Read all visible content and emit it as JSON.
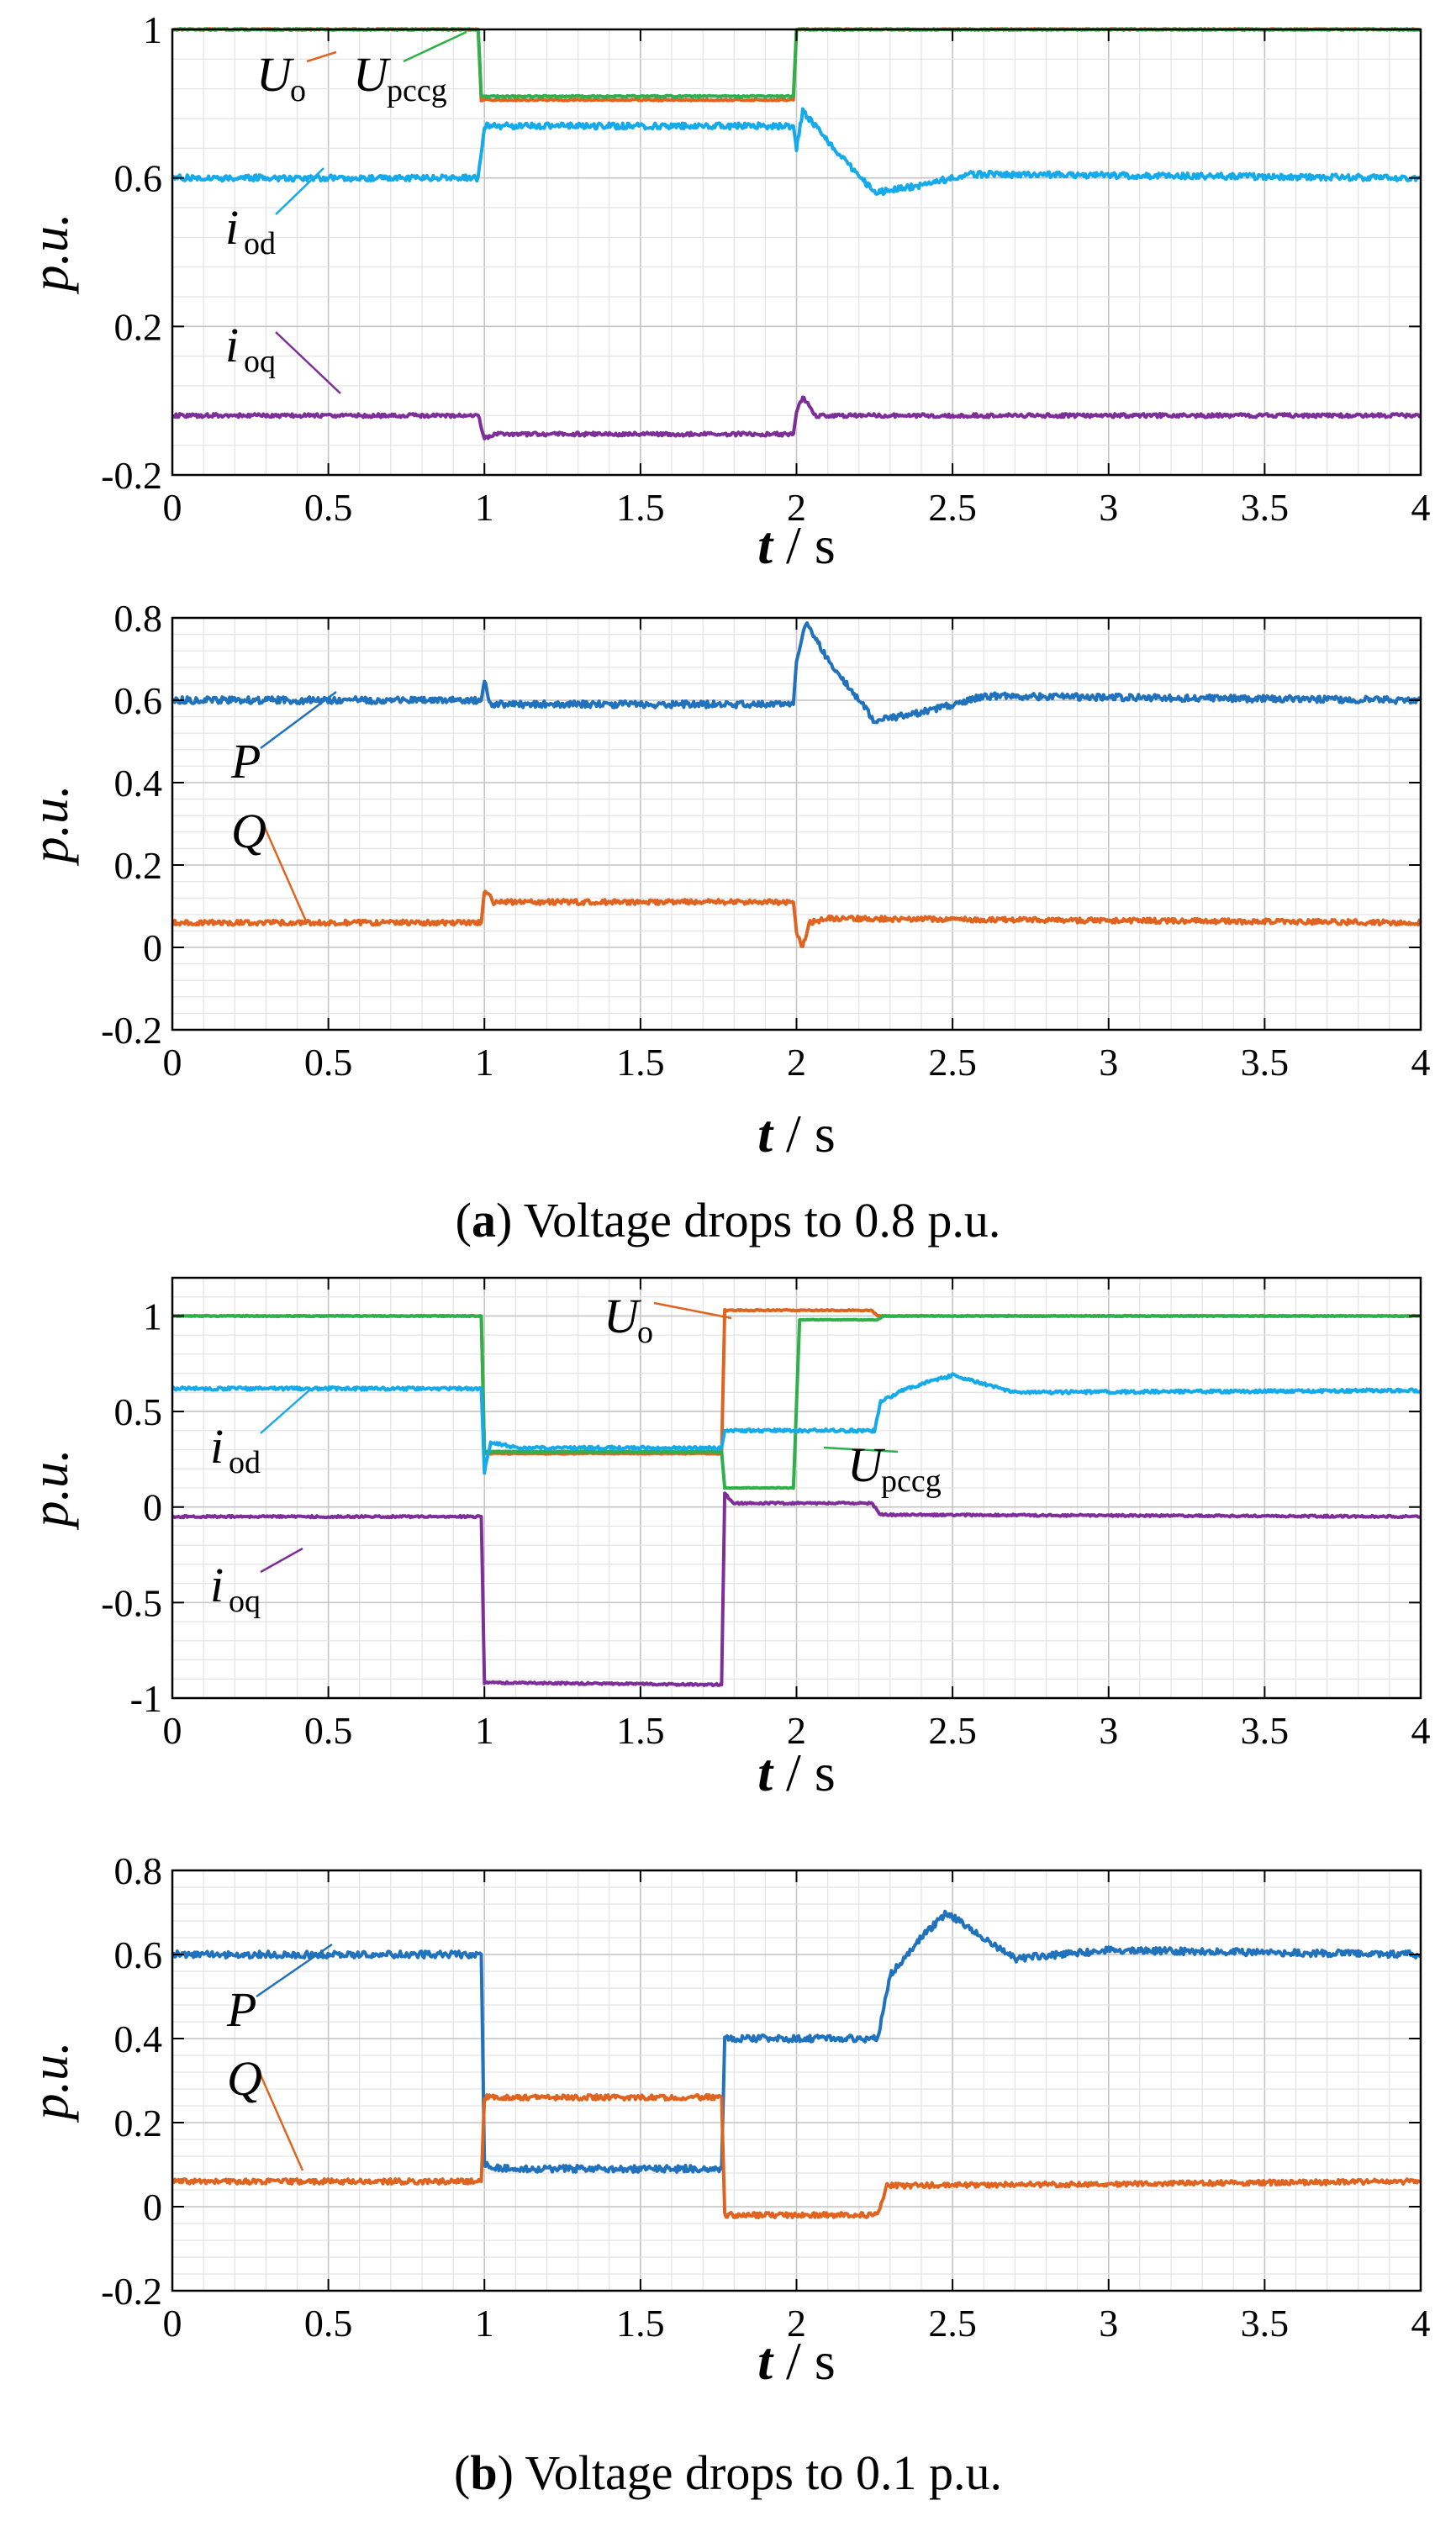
{
  "colors": {
    "u_o": "#e0641f",
    "u_pccg": "#2fb04a",
    "i_od": "#15aaea",
    "i_oq": "#7e2e99",
    "p": "#1f72bb",
    "q": "#e0641f",
    "grid_minor": "#e3e3e3",
    "grid_major": "#c4c4c4"
  },
  "chart_data": [
    {
      "id": "a-current",
      "type": "line",
      "xlabel_t": "t",
      "xlabel_unit": "s",
      "xlabel_sep": " / ",
      "ylabel": "p.u.",
      "xlim": [
        0,
        4
      ],
      "ylim": [
        -0.2,
        1
      ],
      "xticks": [
        "0",
        "0.5",
        "1",
        "1.5",
        "2",
        "2.5",
        "3",
        "3.5",
        "4"
      ],
      "yticks": [
        "-0.2",
        "0.2",
        "0.6",
        "1"
      ],
      "ytick_values": [
        -0.2,
        0.2,
        0.6,
        1
      ],
      "series": [
        {
          "key": "u_o",
          "label_main": "U",
          "label_sub": "o",
          "color": "#e0641f",
          "noise": 0.002,
          "points": [
            [
              0,
              1
            ],
            [
              0.98,
              1
            ],
            [
              0.99,
              0.81
            ],
            [
              1.99,
              0.81
            ],
            [
              2.0,
              1.0
            ],
            [
              4,
              1.0
            ]
          ]
        },
        {
          "key": "u_pccg",
          "label_main": "U",
          "label_sub": "pccg",
          "color": "#2fb04a",
          "noise": 0.002,
          "points": [
            [
              0,
              1
            ],
            [
              0.98,
              1
            ],
            [
              0.99,
              0.82
            ],
            [
              1.99,
              0.82
            ],
            [
              2.0,
              1.0
            ],
            [
              4,
              1.0
            ]
          ]
        },
        {
          "key": "i_od",
          "label_main": "i",
          "label_sub": "od",
          "color": "#15aaea",
          "noise": 0.008,
          "points": [
            [
              0,
              0.6
            ],
            [
              0.98,
              0.6
            ],
            [
              1.0,
              0.74
            ],
            [
              1.99,
              0.74
            ],
            [
              2.0,
              0.68
            ],
            [
              2.02,
              0.78
            ],
            [
              2.1,
              0.7
            ],
            [
              2.25,
              0.56
            ],
            [
              2.4,
              0.58
            ],
            [
              2.55,
              0.61
            ],
            [
              4,
              0.6
            ]
          ]
        },
        {
          "key": "i_oq",
          "label_main": "i",
          "label_sub": "oq",
          "color": "#7e2e99",
          "noise": 0.005,
          "points": [
            [
              0,
              -0.04
            ],
            [
              0.98,
              -0.04
            ],
            [
              1.0,
              -0.1
            ],
            [
              1.04,
              -0.09
            ],
            [
              1.99,
              -0.09
            ],
            [
              2.0,
              -0.03
            ],
            [
              2.02,
              0.01
            ],
            [
              2.06,
              -0.04
            ],
            [
              4,
              -0.04
            ]
          ]
        }
      ]
    },
    {
      "id": "a-power",
      "type": "line",
      "xlabel_t": "t",
      "xlabel_unit": "s",
      "xlabel_sep": " / ",
      "ylabel": "p.u.",
      "xlim": [
        0,
        4
      ],
      "ylim": [
        -0.2,
        0.8
      ],
      "xticks": [
        "0",
        "0.5",
        "1",
        "1.5",
        "2",
        "2.5",
        "3",
        "3.5",
        "4"
      ],
      "yticks": [
        "-0.2",
        "0",
        "0.2",
        "0.4",
        "0.6",
        "0.8"
      ],
      "ytick_values": [
        -0.2,
        0,
        0.2,
        0.4,
        0.6,
        0.8
      ],
      "series": [
        {
          "key": "p",
          "label_main": "P",
          "label_sub": "",
          "color": "#1f72bb",
          "noise": 0.008,
          "points": [
            [
              0,
              0.6
            ],
            [
              0.99,
              0.6
            ],
            [
              1.0,
              0.65
            ],
            [
              1.02,
              0.59
            ],
            [
              1.99,
              0.59
            ],
            [
              2.0,
              0.7
            ],
            [
              2.03,
              0.79
            ],
            [
              2.1,
              0.7
            ],
            [
              2.25,
              0.55
            ],
            [
              2.4,
              0.57
            ],
            [
              2.6,
              0.61
            ],
            [
              4,
              0.6
            ]
          ]
        },
        {
          "key": "q",
          "label_main": "Q",
          "label_sub": "",
          "color": "#e0641f",
          "noise": 0.006,
          "points": [
            [
              0,
              0.06
            ],
            [
              0.99,
              0.06
            ],
            [
              1.0,
              0.14
            ],
            [
              1.03,
              0.11
            ],
            [
              1.99,
              0.11
            ],
            [
              2.0,
              0.04
            ],
            [
              2.02,
              0.0
            ],
            [
              2.04,
              0.06
            ],
            [
              2.1,
              0.07
            ],
            [
              4,
              0.06
            ]
          ]
        }
      ]
    },
    {
      "id": "b-current",
      "type": "line",
      "xlabel_t": "t",
      "xlabel_unit": "s",
      "xlabel_sep": " / ",
      "ylabel": "p.u.",
      "xlim": [
        0,
        4
      ],
      "ylim": [
        -1,
        1.2
      ],
      "xticks": [
        "0",
        "0.5",
        "1",
        "1.5",
        "2",
        "2.5",
        "3",
        "3.5",
        "4"
      ],
      "yticks": [
        "-1",
        "-0.5",
        "0",
        "0.5",
        "1"
      ],
      "ytick_values": [
        -1,
        -0.5,
        0,
        0.5,
        1
      ],
      "series": [
        {
          "key": "u_o",
          "label_main": "U",
          "label_sub": "o",
          "color": "#e0641f",
          "noise": 0.003,
          "points": [
            [
              0,
              1
            ],
            [
              0.99,
              1
            ],
            [
              1.0,
              0.28
            ],
            [
              1.76,
              0.28
            ],
            [
              1.77,
              1.03
            ],
            [
              2.24,
              1.03
            ],
            [
              2.26,
              1.0
            ],
            [
              4,
              1.0
            ]
          ]
        },
        {
          "key": "u_pccg",
          "label_main": "U",
          "label_sub": "pccg",
          "color": "#2fb04a",
          "noise": 0.002,
          "points": [
            [
              0,
              1
            ],
            [
              0.99,
              1
            ],
            [
              1.0,
              0.29
            ],
            [
              1.76,
              0.29
            ],
            [
              1.77,
              0.1
            ],
            [
              1.99,
              0.1
            ],
            [
              2.01,
              0.98
            ],
            [
              2.26,
              0.98
            ],
            [
              2.28,
              1.0
            ],
            [
              4,
              1.0
            ]
          ]
        },
        {
          "key": "i_od",
          "label_main": "i",
          "label_sub": "od",
          "color": "#15aaea",
          "noise": 0.008,
          "points": [
            [
              0,
              0.62
            ],
            [
              0.99,
              0.62
            ],
            [
              1.0,
              0.18
            ],
            [
              1.02,
              0.34
            ],
            [
              1.1,
              0.31
            ],
            [
              1.76,
              0.31
            ],
            [
              1.77,
              0.4
            ],
            [
              2.25,
              0.4
            ],
            [
              2.27,
              0.55
            ],
            [
              2.35,
              0.62
            ],
            [
              2.5,
              0.69
            ],
            [
              2.7,
              0.6
            ],
            [
              4,
              0.61
            ]
          ]
        },
        {
          "key": "i_oq",
          "label_main": "i",
          "label_sub": "oq",
          "color": "#7e2e99",
          "noise": 0.005,
          "points": [
            [
              0,
              -0.05
            ],
            [
              0.99,
              -0.05
            ],
            [
              1.0,
              -0.92
            ],
            [
              1.1,
              -0.92
            ],
            [
              1.76,
              -0.93
            ],
            [
              1.77,
              0.07
            ],
            [
              1.8,
              0.02
            ],
            [
              2.24,
              0.02
            ],
            [
              2.27,
              -0.04
            ],
            [
              4,
              -0.05
            ]
          ]
        }
      ]
    },
    {
      "id": "b-power",
      "type": "line",
      "xlabel_t": "t",
      "xlabel_unit": "s",
      "xlabel_sep": " / ",
      "ylabel": "p.u.",
      "xlim": [
        0,
        4
      ],
      "ylim": [
        -0.2,
        0.8
      ],
      "xticks": [
        "0",
        "0.5",
        "1",
        "1.5",
        "2",
        "2.5",
        "3",
        "3.5",
        "4"
      ],
      "yticks": [
        "-0.2",
        "0",
        "0.2",
        "0.4",
        "0.6",
        "0.8"
      ],
      "ytick_values": [
        -0.2,
        0,
        0.2,
        0.4,
        0.6,
        0.8
      ],
      "series": [
        {
          "key": "p",
          "label_main": "P",
          "label_sub": "",
          "color": "#1f72bb",
          "noise": 0.008,
          "points": [
            [
              0,
              0.6
            ],
            [
              0.99,
              0.6
            ],
            [
              1.0,
              0.1
            ],
            [
              1.05,
              0.09
            ],
            [
              1.76,
              0.09
            ],
            [
              1.77,
              0.4
            ],
            [
              2.26,
              0.4
            ],
            [
              2.3,
              0.55
            ],
            [
              2.4,
              0.64
            ],
            [
              2.48,
              0.7
            ],
            [
              2.6,
              0.64
            ],
            [
              2.7,
              0.59
            ],
            [
              3,
              0.61
            ],
            [
              4,
              0.6
            ]
          ]
        },
        {
          "key": "q",
          "label_main": "Q",
          "label_sub": "",
          "color": "#e0641f",
          "noise": 0.006,
          "points": [
            [
              0,
              0.06
            ],
            [
              0.99,
              0.06
            ],
            [
              1.0,
              0.26
            ],
            [
              1.76,
              0.26
            ],
            [
              1.77,
              -0.02
            ],
            [
              2.26,
              -0.02
            ],
            [
              2.29,
              0.05
            ],
            [
              4,
              0.06
            ]
          ]
        }
      ]
    }
  ],
  "captions": {
    "a_letter": "a",
    "a_text": " Voltage drops to 0.8 p.u.",
    "b_letter": "b",
    "b_text": " Voltage drops to 0.1 p.u."
  }
}
